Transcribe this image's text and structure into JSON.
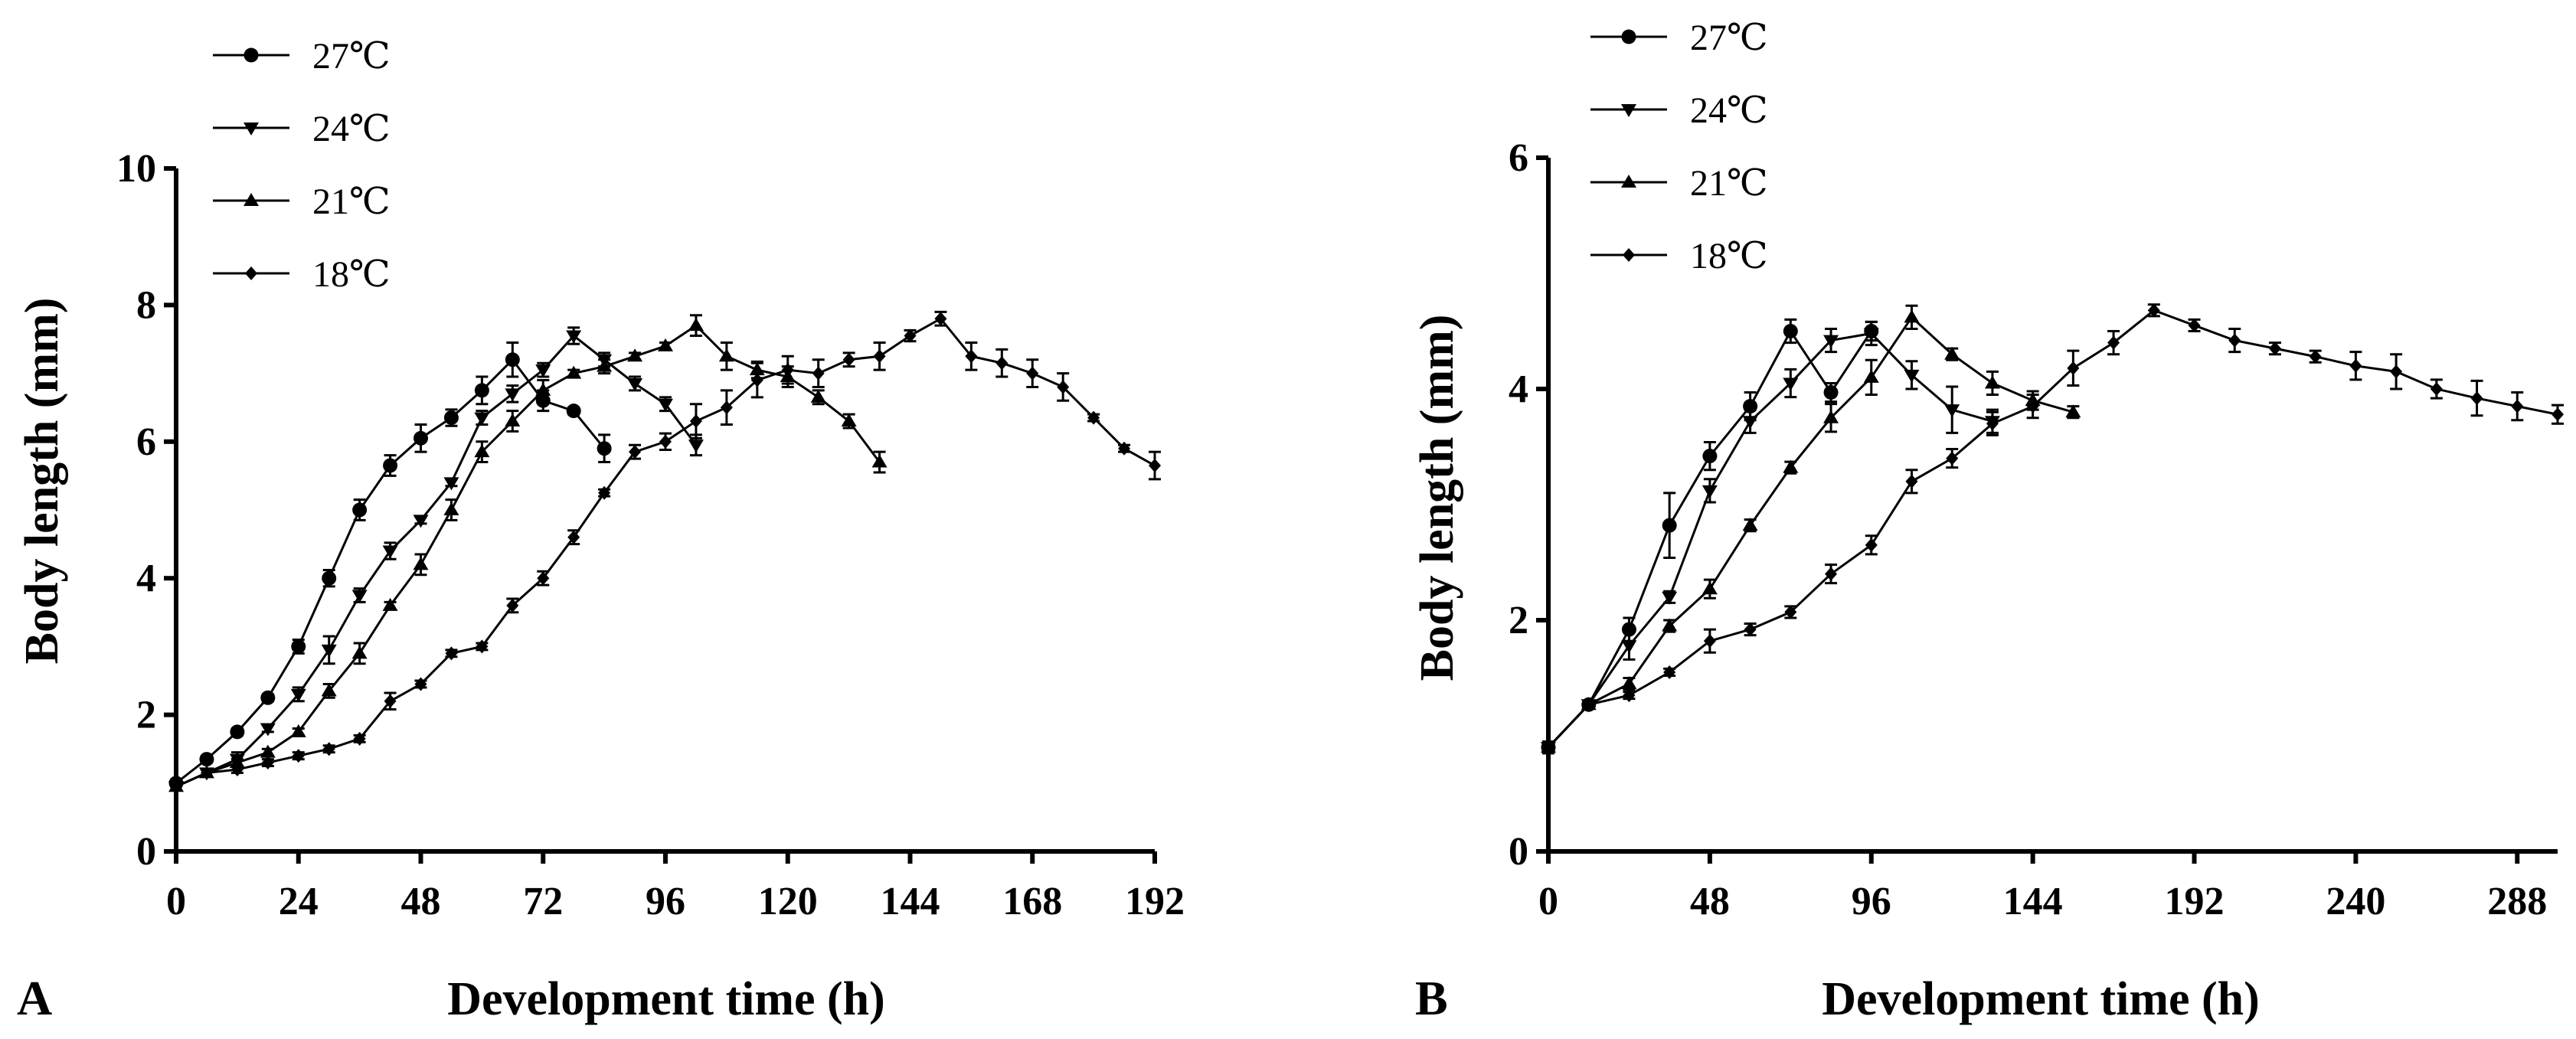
{
  "chart_data": [
    {
      "panel_label": "A",
      "type": "line",
      "xlabel": "Development time (h)",
      "ylabel": "Body length (mm)",
      "xlim": [
        0,
        192
      ],
      "ylim": [
        0,
        10
      ],
      "xticks": [
        0,
        24,
        48,
        72,
        96,
        120,
        144,
        168,
        192
      ],
      "xtick_labels": [
        "0",
        "24",
        "48",
        "72",
        "96",
        "120",
        "144",
        "168",
        "192"
      ],
      "yticks": [
        0,
        2,
        4,
        6,
        8,
        10
      ],
      "ytick_labels": [
        "0",
        "2",
        "4",
        "6",
        "8",
        "10"
      ],
      "legend": [
        "27℃",
        "24℃",
        "21℃",
        "18℃"
      ],
      "series": [
        {
          "name": "27℃",
          "marker": "circle",
          "x": [
            0,
            6,
            12,
            18,
            24,
            30,
            36,
            42,
            48,
            54,
            60,
            66,
            72,
            78,
            84
          ],
          "y": [
            1.0,
            1.35,
            1.75,
            2.25,
            3.0,
            4.0,
            5.0,
            5.65,
            6.05,
            6.35,
            6.75,
            7.2,
            6.6,
            6.45,
            5.9
          ],
          "err": [
            0.05,
            0.05,
            0.05,
            0.05,
            0.1,
            0.12,
            0.15,
            0.15,
            0.2,
            0.12,
            0.2,
            0.25,
            0.15,
            0.05,
            0.2
          ]
        },
        {
          "name": "24℃",
          "marker": "triangle-down",
          "x": [
            0,
            6,
            12,
            18,
            24,
            30,
            36,
            42,
            48,
            54,
            60,
            66,
            72,
            78,
            84,
            90,
            96,
            102
          ],
          "y": [
            0.95,
            1.15,
            1.35,
            1.8,
            2.3,
            2.95,
            3.75,
            4.4,
            4.85,
            5.4,
            6.35,
            6.7,
            7.05,
            7.55,
            7.2,
            6.85,
            6.55,
            5.95
          ],
          "err": [
            0.05,
            0.05,
            0.1,
            0.05,
            0.1,
            0.2,
            0.1,
            0.12,
            0.05,
            0.05,
            0.1,
            0.12,
            0.1,
            0.12,
            0.1,
            0.1,
            0.1,
            0.15
          ]
        },
        {
          "name": "21℃",
          "marker": "triangle-up",
          "x": [
            0,
            6,
            12,
            18,
            24,
            30,
            36,
            42,
            48,
            54,
            60,
            66,
            72,
            78,
            84,
            90,
            96,
            102,
            108,
            114,
            120,
            126,
            132,
            138
          ],
          "y": [
            0.95,
            1.15,
            1.3,
            1.45,
            1.75,
            2.35,
            2.9,
            3.6,
            4.2,
            5.0,
            5.85,
            6.3,
            6.75,
            7.0,
            7.1,
            7.25,
            7.4,
            7.7,
            7.25,
            7.05,
            6.95,
            6.65,
            6.3,
            5.7
          ],
          "err": [
            0.05,
            0.05,
            0.05,
            0.05,
            0.05,
            0.1,
            0.15,
            0.05,
            0.15,
            0.15,
            0.15,
            0.15,
            0.15,
            0.05,
            0.1,
            0.05,
            0.05,
            0.15,
            0.2,
            0.12,
            0.15,
            0.1,
            0.1,
            0.15
          ]
        },
        {
          "name": "18℃",
          "marker": "diamond",
          "x": [
            0,
            6,
            12,
            18,
            24,
            30,
            36,
            42,
            48,
            54,
            60,
            66,
            72,
            78,
            84,
            90,
            96,
            102,
            108,
            114,
            120,
            126,
            132,
            138,
            144,
            150,
            156,
            162,
            168,
            174,
            180,
            186,
            192
          ],
          "y": [
            0.95,
            1.15,
            1.2,
            1.3,
            1.4,
            1.5,
            1.65,
            2.2,
            2.45,
            2.9,
            3.0,
            3.6,
            4.0,
            4.6,
            5.25,
            5.85,
            6.0,
            6.3,
            6.5,
            6.9,
            7.05,
            7.0,
            7.2,
            7.25,
            7.55,
            7.8,
            7.25,
            7.15,
            7.0,
            6.8,
            6.35,
            5.9,
            5.65
          ],
          "err": [
            0.05,
            0.05,
            0.05,
            0.05,
            0.05,
            0.05,
            0.05,
            0.12,
            0.05,
            0.05,
            0.05,
            0.1,
            0.1,
            0.1,
            0.05,
            0.1,
            0.12,
            0.25,
            0.25,
            0.25,
            0.2,
            0.2,
            0.1,
            0.2,
            0.08,
            0.1,
            0.2,
            0.2,
            0.2,
            0.2,
            0.05,
            0.05,
            0.2
          ]
        }
      ]
    },
    {
      "panel_label": "B",
      "type": "line",
      "xlabel": "Development time (h)",
      "ylabel": "Body length (mm)",
      "xlim": [
        0,
        300
      ],
      "ylim": [
        0,
        6
      ],
      "xticks": [
        0,
        48,
        96,
        144,
        192,
        240,
        288
      ],
      "xtick_labels": [
        "0",
        "48",
        "96",
        "144",
        "192",
        "240",
        "288"
      ],
      "yticks": [
        0,
        2,
        4,
        6
      ],
      "ytick_labels": [
        "0",
        "2",
        "4",
        "6"
      ],
      "legend": [
        "27℃",
        "24℃",
        "21℃",
        "18℃"
      ],
      "series": [
        {
          "name": "27℃",
          "marker": "circle",
          "x": [
            0,
            12,
            24,
            36,
            48,
            60,
            72,
            84,
            96
          ],
          "y": [
            0.9,
            1.27,
            1.92,
            2.82,
            3.42,
            3.85,
            4.5,
            3.97,
            4.5
          ],
          "err": [
            0.05,
            0.03,
            0.1,
            0.28,
            0.12,
            0.12,
            0.1,
            0.08,
            0.08
          ]
        },
        {
          "name": "24℃",
          "marker": "triangle-down",
          "x": [
            0,
            12,
            24,
            36,
            48,
            60,
            72,
            84,
            96,
            108,
            120,
            132
          ],
          "y": [
            0.9,
            1.27,
            1.78,
            2.2,
            3.12,
            3.72,
            4.05,
            4.42,
            4.48,
            4.12,
            3.82,
            3.72
          ],
          "err": [
            0.05,
            0.03,
            0.12,
            0.05,
            0.1,
            0.1,
            0.12,
            0.1,
            0.1,
            0.12,
            0.2,
            0.1
          ]
        },
        {
          "name": "21℃",
          "marker": "triangle-up",
          "x": [
            0,
            12,
            24,
            36,
            48,
            60,
            72,
            84,
            96,
            108,
            120,
            132,
            144,
            156
          ],
          "y": [
            0.9,
            1.27,
            1.45,
            1.95,
            2.27,
            2.82,
            3.32,
            3.75,
            4.1,
            4.62,
            4.3,
            4.05,
            3.9,
            3.8
          ],
          "err": [
            0.05,
            0.03,
            0.05,
            0.05,
            0.08,
            0.05,
            0.05,
            0.12,
            0.15,
            0.1,
            0.05,
            0.1,
            0.08,
            0.05
          ]
        },
        {
          "name": "18℃",
          "marker": "diamond",
          "x": [
            0,
            12,
            24,
            36,
            48,
            60,
            72,
            84,
            96,
            108,
            120,
            132,
            144,
            156,
            168,
            180,
            192,
            204,
            216,
            228,
            240,
            252,
            264,
            276,
            288,
            300
          ],
          "y": [
            0.9,
            1.27,
            1.35,
            1.55,
            1.82,
            1.92,
            2.07,
            2.4,
            2.65,
            3.2,
            3.4,
            3.7,
            3.85,
            4.18,
            4.4,
            4.68,
            4.55,
            4.42,
            4.35,
            4.28,
            4.2,
            4.15,
            4.0,
            3.92,
            3.85,
            3.78
          ],
          "err": [
            0.05,
            0.03,
            0.03,
            0.03,
            0.1,
            0.05,
            0.05,
            0.08,
            0.08,
            0.1,
            0.08,
            0.1,
            0.1,
            0.15,
            0.1,
            0.05,
            0.05,
            0.1,
            0.05,
            0.05,
            0.12,
            0.15,
            0.08,
            0.15,
            0.12,
            0.08
          ]
        }
      ]
    }
  ]
}
